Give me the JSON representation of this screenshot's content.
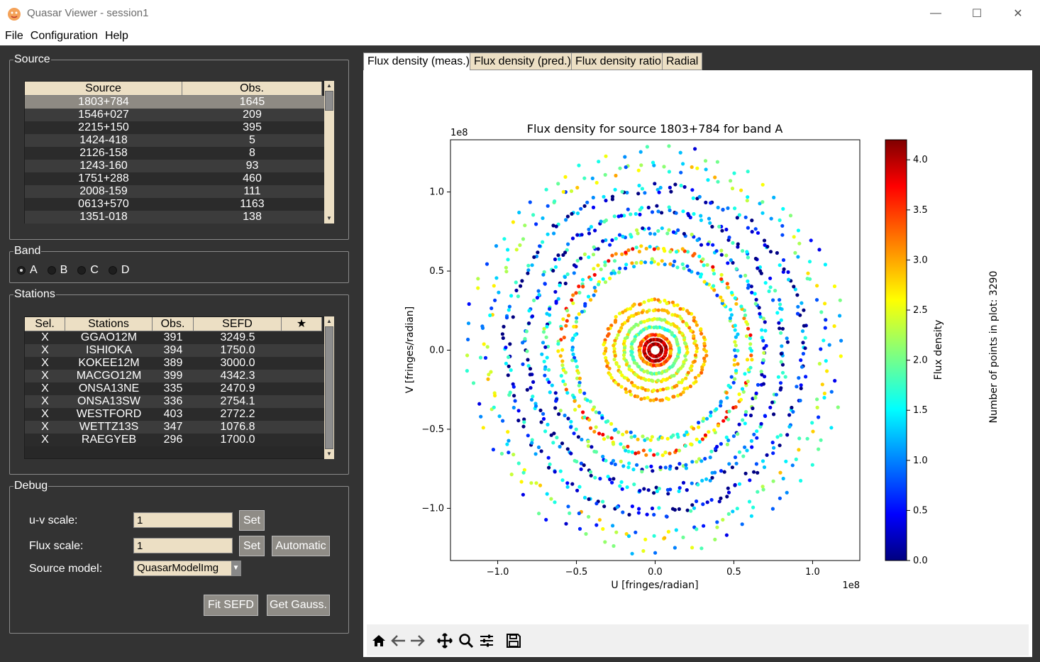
{
  "window": {
    "title": "Quasar Viewer - session1",
    "controls": [
      "—",
      "☐",
      "✕"
    ]
  },
  "menu": [
    "File",
    "Configuration",
    "Help"
  ],
  "source_group": {
    "title": "Source",
    "columns": [
      "Source",
      "Obs."
    ],
    "rows": [
      [
        "1803+784",
        "1645"
      ],
      [
        "1546+027",
        "209"
      ],
      [
        "2215+150",
        "395"
      ],
      [
        "1424-418",
        "5"
      ],
      [
        "2126-158",
        "8"
      ],
      [
        "1243-160",
        "93"
      ],
      [
        "1751+288",
        "460"
      ],
      [
        "2008-159",
        "111"
      ],
      [
        "0613+570",
        "1163"
      ],
      [
        "1351-018",
        "138"
      ]
    ],
    "selected_index": 0
  },
  "band_group": {
    "title": "Band",
    "options": [
      "A",
      "B",
      "C",
      "D"
    ],
    "selected": "A"
  },
  "stations_group": {
    "title": "Stations",
    "columns": [
      "Sel.",
      "Stations",
      "Obs.",
      "SEFD",
      "★"
    ],
    "rows": [
      [
        "X",
        "GGAO12M",
        "391",
        "3249.5",
        ""
      ],
      [
        "X",
        "ISHIOKA",
        "394",
        "1750.0",
        ""
      ],
      [
        "X",
        "KOKEE12M",
        "389",
        "3000.0",
        ""
      ],
      [
        "X",
        "MACGO12M",
        "399",
        "4342.3",
        ""
      ],
      [
        "X",
        "ONSA13NE",
        "335",
        "2470.9",
        ""
      ],
      [
        "X",
        "ONSA13SW",
        "336",
        "2754.1",
        ""
      ],
      [
        "X",
        "WESTFORD",
        "403",
        "2772.2",
        ""
      ],
      [
        "X",
        "WETTZ13S",
        "347",
        "1076.8",
        ""
      ],
      [
        "X",
        "RAEGYEB",
        "296",
        "1700.0",
        ""
      ]
    ]
  },
  "debug_group": {
    "title": "Debug",
    "uv_scale_label": "u-v scale:",
    "uv_scale_value": "1",
    "flux_scale_label": "Flux scale:",
    "flux_scale_value": "1",
    "source_model_label": "Source model:",
    "source_model_value": "QuasarModelImg",
    "set_label": "Set",
    "automatic_label": "Automatic",
    "fit_sefd_label": "Fit SEFD",
    "get_gauss_label": "Get Gauss."
  },
  "tabs": [
    {
      "label": "Flux density (meas.)",
      "active": true
    },
    {
      "label": "Flux density (pred.)",
      "active": false
    },
    {
      "label": "Flux density ratio",
      "active": false
    },
    {
      "label": "Radial",
      "active": false
    }
  ],
  "toolbar": {
    "icons": [
      "home-icon",
      "back-arrow-icon",
      "forward-arrow-icon",
      "pan-icon",
      "zoom-icon",
      "configure-subplots-icon",
      "save-icon"
    ]
  },
  "chart_data": {
    "type": "scatter",
    "title": "Flux density for source 1803+784 for band A",
    "xlabel": "U [fringes/radian]",
    "ylabel": "V [fringes/radian]",
    "x_offset_text": "1e8",
    "y_offset_text": "1e8",
    "xlim": [
      -1.3,
      1.3
    ],
    "ylim": [
      -1.33,
      1.33
    ],
    "xticks": [
      -1.0,
      -0.5,
      0.0,
      0.5,
      1.0
    ],
    "yticks": [
      -1.0,
      -0.5,
      0.0,
      0.5,
      1.0
    ],
    "xtick_labels": [
      "−1.0",
      "−0.5",
      "0.0",
      "0.5",
      "1.0"
    ],
    "ytick_labels": [
      "−1.0",
      "−0.5",
      "0.0",
      "0.5",
      "1.0"
    ],
    "colorbar": {
      "label": "Flux density",
      "colormap": "jet",
      "range": [
        0.0,
        4.2
      ],
      "ticks": [
        0.0,
        0.5,
        1.0,
        1.5,
        2.0,
        2.5,
        3.0,
        3.5,
        4.0
      ],
      "tick_labels": [
        "0.0",
        "0.5",
        "1.0",
        "1.5",
        "2.0",
        "2.5",
        "3.0",
        "3.5",
        "4.0"
      ]
    },
    "side_note": "Number of points in plot: 3290",
    "grid": false,
    "rings": [
      {
        "radius": 0.04,
        "count": 40,
        "flux": 4.0
      },
      {
        "radius": 0.07,
        "count": 50,
        "flux": 3.9
      },
      {
        "radius": 0.1,
        "count": 60,
        "flux": 3.2
      },
      {
        "radius": 0.15,
        "count": 70,
        "flux": 2.0
      },
      {
        "radius": 0.2,
        "count": 80,
        "flux": 2.5
      },
      {
        "radius": 0.26,
        "count": 90,
        "flux": 2.8
      },
      {
        "radius": 0.32,
        "count": 100,
        "flux": 2.9
      },
      {
        "radius": 0.52,
        "count": 160,
        "flux": 1.9
      },
      {
        "radius": 0.6,
        "count": 180,
        "flux": 2.6
      },
      {
        "radius": 0.7,
        "count": 200,
        "flux": 1.2
      },
      {
        "radius": 0.82,
        "count": 220,
        "flux": 0.8
      },
      {
        "radius": 0.95,
        "count": 220,
        "flux": 0.7
      },
      {
        "radius": 1.08,
        "count": 160,
        "flux": 1.8
      },
      {
        "radius": 1.18,
        "count": 80,
        "flux": 1.5
      }
    ]
  }
}
